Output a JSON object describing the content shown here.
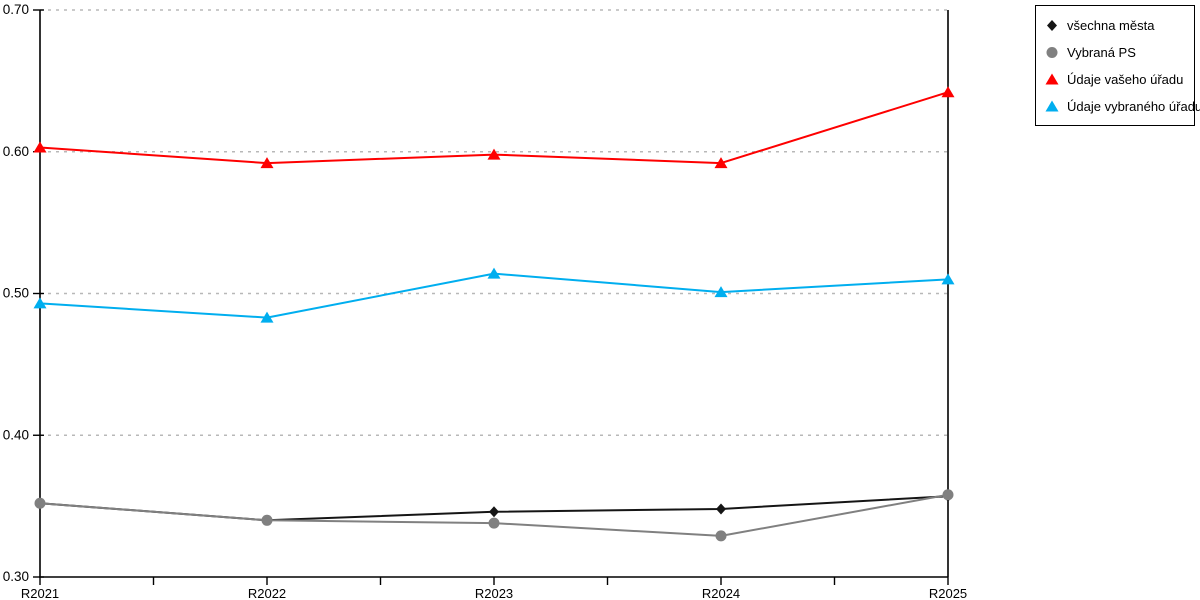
{
  "chart_data": {
    "type": "line",
    "title": "",
    "xlabel": "",
    "ylabel": "",
    "categories": [
      "R2021",
      "R2022",
      "R2023",
      "R2024",
      "R2025"
    ],
    "series": [
      {
        "name": "všechna města",
        "marker": "diamond",
        "color": "#151515",
        "values": [
          0.352,
          0.34,
          0.346,
          0.348,
          0.357
        ]
      },
      {
        "name": "Vybraná PS",
        "marker": "circle",
        "color": "#808080",
        "values": [
          0.352,
          0.34,
          0.338,
          0.329,
          0.358
        ]
      },
      {
        "name": "Údaje vašeho úřadu",
        "marker": "triangle",
        "color": "#fe0000",
        "values": [
          0.603,
          0.592,
          0.598,
          0.592,
          0.642
        ]
      },
      {
        "name": "Údaje vybraného úřadu",
        "marker": "triangle",
        "color": "#00aeef",
        "values": [
          0.493,
          0.483,
          0.514,
          0.501,
          0.51
        ]
      }
    ],
    "ylim": [
      0.3,
      0.7
    ],
    "ytick_step": 0.1,
    "ytick_labels": [
      "0.30",
      "0.40",
      "0.50",
      "0.60",
      "0.70"
    ],
    "x_minor_ticks_between_labels": 1,
    "grid": "horizontal-dotted",
    "gridline_color": "#b8b8b8",
    "axis_color": "#000000",
    "legend_position": "top-right"
  }
}
